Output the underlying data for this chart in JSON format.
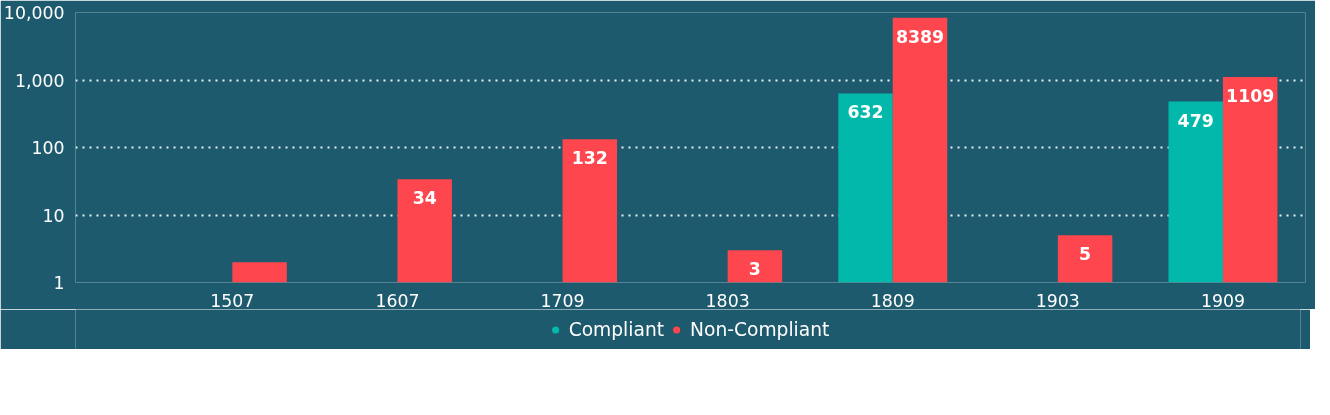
{
  "chart_data": {
    "type": "bar",
    "categories": [
      "1507",
      "1607",
      "1709",
      "1803",
      "1809",
      "1903",
      "1909"
    ],
    "series": [
      {
        "name": "Compliant",
        "color": "#01b8aa",
        "values": [
          null,
          null,
          null,
          null,
          632,
          null,
          479
        ],
        "value_labels": [
          null,
          null,
          null,
          null,
          "632",
          null,
          "479"
        ]
      },
      {
        "name": "Non-Compliant",
        "color": "#fd464e",
        "values": [
          2,
          34,
          132,
          3,
          8389,
          5,
          1109
        ],
        "value_labels": [
          null,
          "34",
          "132",
          "3",
          "8389",
          "5",
          "1109"
        ]
      }
    ],
    "log": true,
    "ylim": [
      1,
      10000
    ],
    "yticks": [
      1,
      10,
      100,
      {
        "value": 1000,
        "label": "1,000"
      },
      {
        "value": 10000,
        "label": "10,000"
      }
    ],
    "grid": "y",
    "legend": "bottom"
  }
}
